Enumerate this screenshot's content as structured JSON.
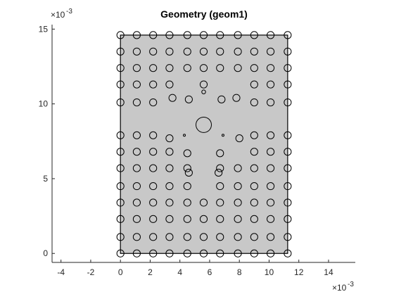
{
  "figure": {
    "title": "Geometry (geom1)"
  },
  "chart_data": {
    "type": "scatter",
    "title": "Geometry (geom1)",
    "xlabel": "",
    "ylabel": "",
    "x_exponent_label": "×10",
    "x_exponent_power": "-3",
    "y_exponent_label": "×10",
    "y_exponent_power": "-3",
    "xlim": [
      -4.6,
      15.8
    ],
    "ylim": [
      -0.6,
      15.3
    ],
    "x_ticks": [
      -4,
      -2,
      0,
      2,
      4,
      6,
      8,
      10,
      12,
      14
    ],
    "x_tick_labels": [
      "-4",
      "-2",
      "0",
      "2",
      "4",
      "6",
      "8",
      "10",
      "12",
      "14"
    ],
    "y_ticks": [
      0,
      5,
      10,
      15
    ],
    "y_tick_labels": [
      "0",
      "5",
      "10",
      "15"
    ],
    "grid": false,
    "background_rect": {
      "x0": 0,
      "x1": 11.25,
      "y0": 0,
      "y1": 14.6,
      "color": "#c8c8c8"
    },
    "circle_radius_regular": 0.24,
    "circle_rows": [
      {
        "y": 14.6,
        "xs": [
          0,
          1.1,
          2.2,
          3.3,
          4.5,
          5.6,
          6.7,
          7.9,
          9.0,
          10.1,
          11.25
        ]
      },
      {
        "y": 13.5,
        "xs": [
          0,
          1.1,
          2.2,
          3.3,
          4.5,
          5.6,
          6.7,
          7.9,
          9.0,
          10.1,
          11.25
        ]
      },
      {
        "y": 12.4,
        "xs": [
          0,
          1.1,
          2.2,
          3.3,
          4.5,
          5.6,
          6.7,
          7.9,
          9.0,
          10.1,
          11.25
        ]
      },
      {
        "y": 11.3,
        "xs": [
          0,
          1.1,
          2.2,
          3.3,
          9.0,
          10.1,
          11.25
        ]
      },
      {
        "y": 10.1,
        "xs": [
          0,
          1.1,
          2.2,
          9.0,
          10.1,
          11.25
        ]
      },
      {
        "y": 7.9,
        "xs": [
          0,
          1.1,
          2.2,
          9.0,
          10.1,
          11.25
        ]
      },
      {
        "y": 6.8,
        "xs": [
          0,
          1.1,
          2.2,
          3.3,
          9.0,
          10.1,
          11.25
        ]
      },
      {
        "y": 5.7,
        "xs": [
          0,
          1.1,
          2.2,
          3.3,
          4.5,
          6.7,
          7.9,
          9.0,
          10.1,
          11.25
        ]
      },
      {
        "y": 4.5,
        "xs": [
          0,
          1.1,
          2.2,
          3.3,
          4.5,
          6.7,
          7.9,
          9.0,
          10.1,
          11.25
        ]
      },
      {
        "y": 3.4,
        "xs": [
          0,
          1.1,
          2.2,
          3.3,
          4.5,
          5.6,
          6.7,
          7.9,
          9.0,
          10.1,
          11.25
        ]
      },
      {
        "y": 2.3,
        "xs": [
          0,
          1.1,
          2.2,
          3.3,
          4.5,
          5.6,
          6.7,
          7.9,
          9.0,
          10.1,
          11.25
        ]
      },
      {
        "y": 1.1,
        "xs": [
          0,
          1.1,
          2.2,
          3.3,
          4.5,
          5.6,
          6.7,
          7.9,
          9.0,
          10.1,
          11.25
        ]
      },
      {
        "y": 0,
        "xs": [
          0,
          1.1,
          2.2,
          3.3,
          4.5,
          5.6,
          6.7,
          7.9,
          9.0,
          10.1,
          11.25
        ]
      }
    ],
    "special_circles": [
      {
        "x": 5.6,
        "y": 8.6,
        "r": 0.52
      },
      {
        "x": 5.6,
        "y": 11.3,
        "r": 0.24
      },
      {
        "x": 5.6,
        "y": 10.8,
        "r": 0.13
      },
      {
        "x": 3.5,
        "y": 10.4,
        "r": 0.24
      },
      {
        "x": 4.6,
        "y": 10.3,
        "r": 0.24
      },
      {
        "x": 6.8,
        "y": 10.3,
        "r": 0.24
      },
      {
        "x": 7.8,
        "y": 10.4,
        "r": 0.24
      },
      {
        "x": 3.3,
        "y": 7.7,
        "r": 0.24
      },
      {
        "x": 4.3,
        "y": 7.9,
        "r": 0.06
      },
      {
        "x": 6.9,
        "y": 7.9,
        "r": 0.06
      },
      {
        "x": 8.0,
        "y": 7.7,
        "r": 0.24
      },
      {
        "x": 4.5,
        "y": 6.7,
        "r": 0.24
      },
      {
        "x": 6.7,
        "y": 6.7,
        "r": 0.24
      },
      {
        "x": 4.6,
        "y": 5.4,
        "r": 0.24
      },
      {
        "x": 6.6,
        "y": 5.4,
        "r": 0.24
      }
    ]
  }
}
